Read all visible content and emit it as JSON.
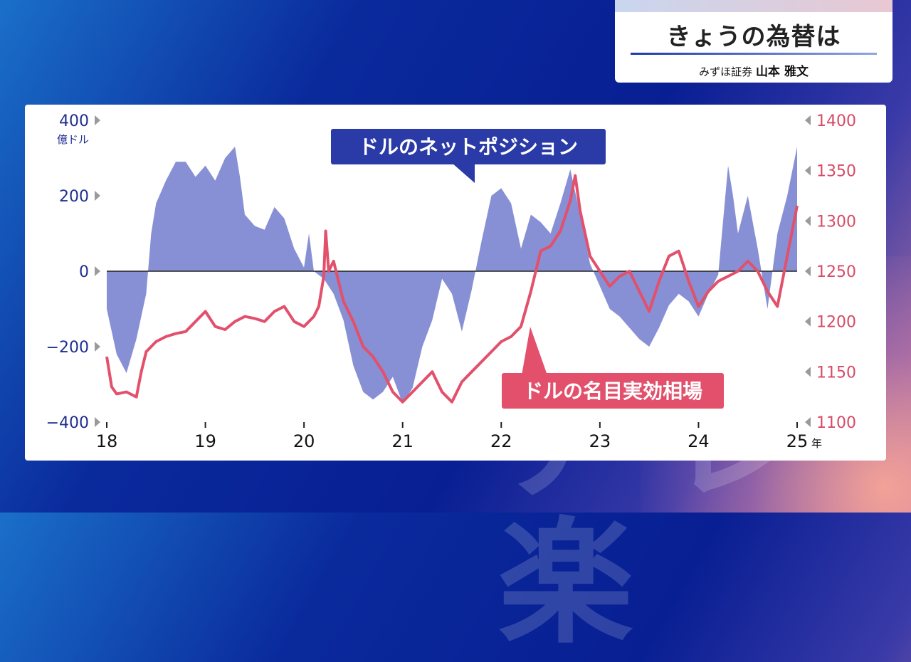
{
  "header": {
    "title": "きょうの為替は",
    "subtitle_org": "みずほ証券",
    "subtitle_name": "山本 雅文"
  },
  "colors": {
    "net_position": "#8790d4",
    "effective_rate": "#e2506c",
    "left_axis": "#1f2f8f",
    "right_axis": "#d84a66",
    "zero_line": "#222222"
  },
  "chart_data": {
    "type": "area",
    "x_labels": [
      "18",
      "19",
      "20",
      "21",
      "22",
      "23",
      "24",
      "25"
    ],
    "x_unit": "年",
    "left_axis": {
      "label": "億ドル",
      "ticks": [
        "400",
        "200",
        "0",
        "−200",
        "−400"
      ],
      "range": [
        -400,
        400
      ]
    },
    "right_axis": {
      "ticks": [
        "1400",
        "1350",
        "1300",
        "1250",
        "1200",
        "1150",
        "1100"
      ],
      "range": [
        1100,
        1400
      ]
    },
    "series": [
      {
        "name": "ドルのネットポジション",
        "type": "area",
        "axis": "left",
        "x": [
          2018.0,
          2018.1,
          2018.2,
          2018.3,
          2018.4,
          2018.45,
          2018.5,
          2018.6,
          2018.7,
          2018.8,
          2018.9,
          2019.0,
          2019.1,
          2019.2,
          2019.3,
          2019.35,
          2019.4,
          2019.5,
          2019.6,
          2019.7,
          2019.8,
          2019.9,
          2020.0,
          2020.05,
          2020.1,
          2020.2,
          2020.3,
          2020.4,
          2020.5,
          2020.6,
          2020.7,
          2020.8,
          2020.9,
          2021.0,
          2021.1,
          2021.2,
          2021.3,
          2021.4,
          2021.5,
          2021.6,
          2021.7,
          2021.8,
          2021.9,
          2022.0,
          2022.1,
          2022.2,
          2022.3,
          2022.4,
          2022.5,
          2022.6,
          2022.7,
          2022.8,
          2022.9,
          2023.0,
          2023.1,
          2023.2,
          2023.3,
          2023.4,
          2023.5,
          2023.6,
          2023.7,
          2023.8,
          2023.9,
          2024.0,
          2024.1,
          2024.2,
          2024.3,
          2024.35,
          2024.4,
          2024.5,
          2024.6,
          2024.7,
          2024.8,
          2024.9,
          2025.0
        ],
        "values": [
          -100,
          -220,
          -270,
          -180,
          -60,
          100,
          180,
          240,
          290,
          290,
          250,
          280,
          240,
          300,
          330,
          250,
          150,
          120,
          110,
          170,
          140,
          60,
          10,
          100,
          0,
          -20,
          -60,
          -130,
          -250,
          -320,
          -340,
          -320,
          -280,
          -350,
          -310,
          -200,
          -130,
          -20,
          -60,
          -160,
          -50,
          80,
          200,
          220,
          180,
          60,
          150,
          130,
          100,
          180,
          270,
          150,
          20,
          -40,
          -100,
          -120,
          -150,
          -180,
          -200,
          -150,
          -90,
          -60,
          -80,
          -120,
          -60,
          -10,
          280,
          200,
          100,
          200,
          60,
          -100,
          100,
          200,
          330
        ]
      },
      {
        "name": "ドルの名目実効相場",
        "type": "line",
        "axis": "right",
        "x": [
          2018.0,
          2018.05,
          2018.1,
          2018.2,
          2018.3,
          2018.35,
          2018.4,
          2018.5,
          2018.6,
          2018.7,
          2018.8,
          2018.9,
          2019.0,
          2019.1,
          2019.2,
          2019.3,
          2019.4,
          2019.5,
          2019.6,
          2019.7,
          2019.8,
          2019.9,
          2020.0,
          2020.1,
          2020.15,
          2020.2,
          2020.22,
          2020.25,
          2020.3,
          2020.4,
          2020.5,
          2020.6,
          2020.7,
          2020.8,
          2020.9,
          2021.0,
          2021.1,
          2021.2,
          2021.3,
          2021.4,
          2021.5,
          2021.6,
          2021.7,
          2021.8,
          2021.9,
          2022.0,
          2022.1,
          2022.2,
          2022.3,
          2022.4,
          2022.5,
          2022.6,
          2022.7,
          2022.75,
          2022.8,
          2022.9,
          2023.0,
          2023.1,
          2023.2,
          2023.3,
          2023.4,
          2023.5,
          2023.6,
          2023.7,
          2023.8,
          2023.9,
          2024.0,
          2024.1,
          2024.2,
          2024.3,
          2024.4,
          2024.5,
          2024.6,
          2024.7,
          2024.8,
          2024.9,
          2025.0
        ],
        "values": [
          1165,
          1135,
          1128,
          1130,
          1125,
          1150,
          1170,
          1180,
          1185,
          1188,
          1190,
          1200,
          1210,
          1195,
          1192,
          1200,
          1205,
          1203,
          1200,
          1210,
          1215,
          1200,
          1195,
          1205,
          1215,
          1245,
          1290,
          1250,
          1260,
          1220,
          1200,
          1175,
          1165,
          1150,
          1130,
          1120,
          1130,
          1140,
          1150,
          1130,
          1120,
          1140,
          1150,
          1160,
          1170,
          1180,
          1185,
          1195,
          1230,
          1270,
          1275,
          1290,
          1320,
          1345,
          1310,
          1265,
          1250,
          1235,
          1245,
          1250,
          1230,
          1210,
          1240,
          1265,
          1270,
          1240,
          1215,
          1230,
          1240,
          1245,
          1250,
          1260,
          1250,
          1230,
          1215,
          1265,
          1315
        ]
      }
    ],
    "callouts": [
      "ドルのネットポジション",
      "ドルの名目実効相場"
    ],
    "grid": false
  }
}
